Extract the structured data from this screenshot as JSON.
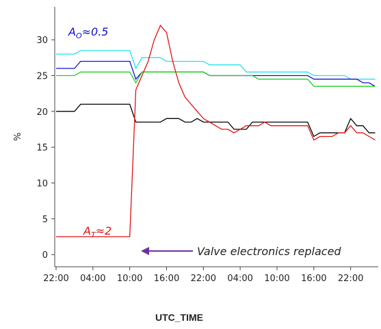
{
  "chart_data": {
    "type": "line",
    "x_label": "UTC_TIME",
    "y_label": "%",
    "x": [
      0,
      1,
      2,
      3,
      4,
      5,
      6,
      7,
      8,
      9,
      10,
      11,
      12,
      13,
      14,
      15,
      16,
      17,
      18,
      19,
      20,
      21,
      22,
      23,
      24,
      25,
      26,
      27,
      28,
      29,
      30,
      31,
      32,
      33,
      34,
      35,
      36,
      37,
      38,
      39,
      40,
      41,
      42,
      43,
      44,
      45,
      46,
      47,
      48,
      49,
      50,
      51,
      52
    ],
    "xlim": [
      0,
      52.5
    ],
    "ylim": [
      -1.7,
      34.6
    ],
    "xticks": [
      {
        "value": 0,
        "label": "22:00"
      },
      {
        "value": 6,
        "label": "04:00"
      },
      {
        "value": 12,
        "label": "10:00"
      },
      {
        "value": 18,
        "label": "16:00"
      },
      {
        "value": 24,
        "label": "22:00"
      },
      {
        "value": 30,
        "label": "04:00"
      },
      {
        "value": 36,
        "label": "10:00"
      },
      {
        "value": 42,
        "label": "16:00"
      },
      {
        "value": 48,
        "label": "22:00"
      }
    ],
    "yticks": [
      0,
      5,
      10,
      15,
      20,
      25,
      30
    ],
    "series": [
      {
        "name": "cyan",
        "color": "#22e0f0",
        "values": [
          28,
          28,
          28,
          28,
          28.5,
          28.5,
          28.5,
          28.5,
          28.5,
          28.5,
          28.5,
          28.5,
          28.5,
          26,
          27.5,
          27.5,
          27.5,
          27.5,
          27,
          27,
          27,
          27,
          27,
          27,
          27,
          26.5,
          26.5,
          26.5,
          26.5,
          26.5,
          26.5,
          25.5,
          25.5,
          25.5,
          25.5,
          25.5,
          25.5,
          25.5,
          25.5,
          25.5,
          25.5,
          25.5,
          25,
          25,
          25,
          25,
          25,
          25,
          24.5,
          24.5,
          24.5,
          24.5,
          24.5
        ]
      },
      {
        "name": "blue",
        "color": "#1010d0",
        "values": [
          26,
          26,
          26,
          26,
          27,
          27,
          27,
          27,
          27,
          27,
          27,
          27,
          27,
          24.5,
          25.5,
          25.5,
          25.5,
          25.5,
          25.5,
          25.5,
          25.5,
          25.5,
          25.5,
          25.5,
          25.5,
          25,
          25,
          25,
          25,
          25,
          25,
          25,
          25,
          25,
          25,
          25,
          25,
          25,
          25,
          25,
          25,
          25,
          24.5,
          24.5,
          24.5,
          24.5,
          24.5,
          24.5,
          24.5,
          24.5,
          24,
          24,
          23.5
        ]
      },
      {
        "name": "green",
        "color": "#20d020",
        "values": [
          25,
          25,
          25,
          25,
          25.5,
          25.5,
          25.5,
          25.5,
          25.5,
          25.5,
          25.5,
          25.5,
          25.5,
          24,
          25.5,
          25.5,
          25.5,
          25.5,
          25.5,
          25.5,
          25.5,
          25.5,
          25.5,
          25.5,
          25.5,
          25,
          25,
          25,
          25,
          25,
          25,
          25,
          25,
          24.5,
          24.5,
          24.5,
          24.5,
          24.5,
          24.5,
          24.5,
          24.5,
          24.5,
          23.5,
          23.5,
          23.5,
          23.5,
          23.5,
          23.5,
          23.5,
          23.5,
          23.5,
          23.5,
          23.5
        ]
      },
      {
        "name": "black",
        "color": "#000000",
        "values": [
          20,
          20,
          20,
          20,
          21,
          21,
          21,
          21,
          21,
          21,
          21,
          21,
          21,
          18.5,
          18.5,
          18.5,
          18.5,
          18.5,
          19,
          19,
          19,
          18.5,
          18.5,
          19,
          18.5,
          18.5,
          18.5,
          18.5,
          18.5,
          17.5,
          17.5,
          17.5,
          18.5,
          18.5,
          18.5,
          18.5,
          18.5,
          18.5,
          18.5,
          18.5,
          18.5,
          18.5,
          16.5,
          17,
          17,
          17,
          17,
          17,
          19,
          18,
          18,
          17,
          17
        ]
      },
      {
        "name": "red",
        "color": "#e01010",
        "values": [
          2.5,
          2.5,
          2.5,
          2.5,
          2.5,
          2.5,
          2.5,
          2.5,
          2.5,
          2.5,
          2.5,
          2.5,
          2.5,
          23,
          25,
          27,
          30,
          32,
          31,
          27,
          24,
          22,
          21,
          20,
          19,
          18.5,
          18,
          17.5,
          17.5,
          17,
          17.5,
          18,
          18,
          18,
          18.5,
          18,
          18,
          18,
          18,
          18,
          18,
          18,
          16,
          16.5,
          16.5,
          16.5,
          17,
          17,
          18,
          17,
          17,
          16.5,
          16
        ]
      }
    ],
    "annotations": [
      {
        "base": "A",
        "sub": "O",
        "rest": "≈0.5",
        "color": "#1010d0"
      },
      {
        "base": "A",
        "sub": "T",
        "rest": "≈2",
        "color": "#e01010"
      },
      {
        "text": "Valve electronics replaced",
        "color": "#7030a0"
      }
    ]
  }
}
